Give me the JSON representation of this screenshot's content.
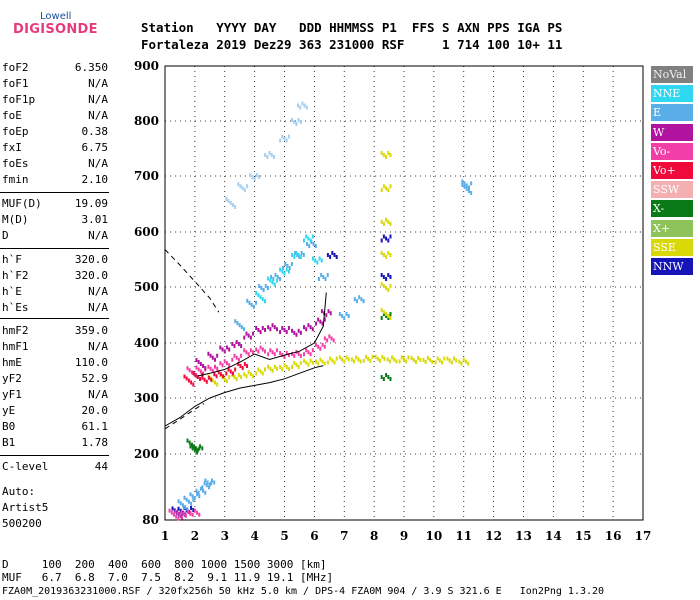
{
  "logo": {
    "small": "Lowell",
    "big": "DIGISONDE"
  },
  "header": {
    "line1": "Station   YYYY DAY   DDD HHMMSS P1  FFS S AXN PPS IGA PS",
    "line2": "Fortaleza 2019 Dez29 363 231000 RSF     1 714 100 10+ 11"
  },
  "params_group1": [
    {
      "label": "foF2",
      "value": "6.350"
    },
    {
      "label": "foF1",
      "value": "N/A"
    },
    {
      "label": "foF1p",
      "value": "N/A"
    },
    {
      "label": "foE",
      "value": "N/A"
    },
    {
      "label": "foEp",
      "value": "0.38"
    },
    {
      "label": "fxI",
      "value": "6.75"
    },
    {
      "label": "foEs",
      "value": "N/A"
    },
    {
      "label": "fmin",
      "value": "2.10"
    }
  ],
  "params_group2": [
    {
      "label": "MUF(D)",
      "value": "19.09"
    },
    {
      "label": "M(D)",
      "value": "3.01"
    },
    {
      "label": "D",
      "value": "N/A"
    }
  ],
  "params_group3": [
    {
      "label": "h`F",
      "value": "320.0"
    },
    {
      "label": "h`F2",
      "value": "320.0"
    },
    {
      "label": "h`E",
      "value": "N/A"
    },
    {
      "label": "h`Es",
      "value": "N/A"
    }
  ],
  "params_group4": [
    {
      "label": "hmF2",
      "value": "359.0"
    },
    {
      "label": "hmF1",
      "value": "N/A"
    },
    {
      "label": "hmE",
      "value": "110.0"
    },
    {
      "label": "yF2",
      "value": "52.9"
    },
    {
      "label": "yF1",
      "value": "N/A"
    },
    {
      "label": "yE",
      "value": "20.0"
    },
    {
      "label": "B0",
      "value": "61.1"
    },
    {
      "label": "B1",
      "value": "1.78"
    }
  ],
  "clevel": {
    "label": "C-level",
    "value": "44"
  },
  "auto": [
    "Auto:",
    "Artist5",
    "500200"
  ],
  "footer": {
    "d_row": "D     100  200  400  600  800 1000 1500 3000 [km]",
    "muf_row": "MUF   6.7  6.8  7.0  7.5  8.2  9.1 11.9 19.1 [MHz]",
    "file_row": "FZA0M_2019363231000.RSF / 320fx256h 50 kHz 5.0 km / DPS-4 FZA0M 904 / 3.9 S 321.6 E   Ion2Png 1.3.20"
  },
  "legend": [
    {
      "label": "NoVal",
      "color": "#808080"
    },
    {
      "label": "NNE",
      "color": "#2fd8f0"
    },
    {
      "label": "E",
      "color": "#5aaee8"
    },
    {
      "label": "W",
      "color": "#b0139e"
    },
    {
      "label": "Vo-",
      "color": "#f23fa8"
    },
    {
      "label": "Vo+",
      "color": "#f00a3c"
    },
    {
      "label": "SSW",
      "color": "#f4b0b0"
    },
    {
      "label": "X-",
      "color": "#0a7a18"
    },
    {
      "label": "X+",
      "color": "#8ec25a"
    },
    {
      "label": "SSE",
      "color": "#d9d90a"
    },
    {
      "label": "NNW",
      "color": "#1414b8"
    }
  ],
  "chart_data": {
    "type": "scatter",
    "x_ticks": [
      "1",
      "2",
      "3",
      "4",
      "5",
      "6",
      "7",
      "8",
      "9",
      "10",
      "11",
      "12",
      "13",
      "14",
      "15",
      "16",
      "17"
    ],
    "y_ticks": [
      "80",
      "200",
      "300",
      "400",
      "500",
      "600",
      "700",
      "800",
      "900"
    ],
    "xlim": [
      1,
      17
    ],
    "ylim": [
      80,
      900
    ],
    "grid": true,
    "traces": [
      {
        "color": "#d9d90a",
        "points": [
          [
            2.6,
            330
          ],
          [
            3.0,
            336
          ],
          [
            3.4,
            340
          ],
          [
            3.8,
            345
          ],
          [
            4.2,
            350
          ],
          [
            4.6,
            355
          ],
          [
            5.0,
            358
          ],
          [
            5.4,
            362
          ],
          [
            5.8,
            366
          ],
          [
            6.2,
            368
          ],
          [
            6.6,
            370
          ],
          [
            7.0,
            372
          ],
          [
            7.4,
            372
          ],
          [
            7.8,
            373
          ],
          [
            8.2,
            373
          ],
          [
            8.6,
            372
          ],
          [
            9.0,
            372
          ],
          [
            9.4,
            371
          ],
          [
            9.8,
            371
          ],
          [
            10.2,
            370
          ],
          [
            10.6,
            370
          ],
          [
            11.0,
            368
          ]
        ]
      },
      {
        "color": "#f23fa8",
        "points": [
          [
            1.9,
            345
          ],
          [
            2.2,
            350
          ],
          [
            2.6,
            355
          ],
          [
            3.0,
            365
          ],
          [
            3.4,
            375
          ],
          [
            3.8,
            385
          ],
          [
            4.2,
            390
          ],
          [
            4.6,
            385
          ],
          [
            5.0,
            380
          ],
          [
            5.4,
            382
          ],
          [
            5.8,
            385
          ],
          [
            6.2,
            395
          ],
          [
            6.5,
            410
          ]
        ]
      },
      {
        "color": "#b0139e",
        "points": [
          [
            2.2,
            360
          ],
          [
            2.6,
            375
          ],
          [
            3.0,
            390
          ],
          [
            3.4,
            400
          ],
          [
            3.8,
            415
          ],
          [
            4.2,
            425
          ],
          [
            4.6,
            430
          ],
          [
            5.0,
            425
          ],
          [
            5.4,
            420
          ],
          [
            5.8,
            430
          ],
          [
            6.2,
            440
          ],
          [
            6.4,
            455
          ]
        ]
      },
      {
        "color": "#5aaee8",
        "points": [
          [
            3.5,
            430
          ],
          [
            3.9,
            470
          ],
          [
            4.3,
            500
          ],
          [
            4.7,
            520
          ],
          [
            5.1,
            540
          ],
          [
            5.5,
            560
          ],
          [
            5.9,
            580
          ],
          [
            6.3,
            520
          ],
          [
            7.0,
            450
          ],
          [
            7.5,
            480
          ]
        ]
      },
      {
        "color": "#2fd8f0",
        "points": [
          [
            4.2,
            480
          ],
          [
            4.6,
            510
          ],
          [
            5.0,
            530
          ],
          [
            5.4,
            560
          ],
          [
            5.8,
            590
          ],
          [
            6.1,
            550
          ]
        ]
      },
      {
        "color": "#a9cfee",
        "points": [
          [
            3.2,
            650
          ],
          [
            3.6,
            680
          ],
          [
            4.0,
            700
          ],
          [
            4.5,
            740
          ],
          [
            5.0,
            770
          ],
          [
            5.4,
            800
          ],
          [
            5.6,
            830
          ]
        ]
      },
      {
        "color": "#f00a3c",
        "points": [
          [
            1.8,
            330
          ],
          [
            2.1,
            340
          ],
          [
            2.4,
            335
          ],
          [
            2.8,
            345
          ],
          [
            3.2,
            350
          ],
          [
            3.6,
            360
          ]
        ]
      },
      {
        "color": "#0a7a18",
        "points": [
          [
            1.9,
            215
          ],
          [
            2.0,
            208
          ],
          [
            2.1,
            212
          ],
          [
            8.4,
            340
          ],
          [
            8.4,
            450
          ]
        ]
      },
      {
        "color": "#1414b8",
        "points": [
          [
            1.4,
            92
          ],
          [
            1.6,
            95
          ],
          [
            1.8,
            100
          ],
          [
            6.6,
            560
          ],
          [
            8.4,
            590
          ],
          [
            8.4,
            520
          ]
        ]
      },
      {
        "color": "#5aaee8",
        "points": [
          [
            1.6,
            105
          ],
          [
            1.8,
            115
          ],
          [
            2.0,
            125
          ],
          [
            2.2,
            135
          ],
          [
            2.4,
            145
          ],
          [
            2.5,
            150
          ]
        ]
      },
      {
        "color": "#f23fa8",
        "points": [
          [
            1.3,
            88
          ],
          [
            1.5,
            90
          ],
          [
            1.7,
            93
          ],
          [
            2.0,
            95
          ]
        ]
      },
      {
        "color": "#d9d90a",
        "points": [
          [
            8.4,
            450
          ],
          [
            8.4,
            500
          ],
          [
            8.4,
            560
          ],
          [
            8.4,
            620
          ],
          [
            8.4,
            680
          ],
          [
            8.4,
            740
          ]
        ]
      },
      {
        "color": "#5aaee8",
        "points": [
          [
            11.1,
            675
          ],
          [
            11.1,
            685
          ]
        ]
      }
    ],
    "profile_curve": [
      [
        1,
        250
      ],
      [
        1.5,
        265
      ],
      [
        2,
        285
      ],
      [
        2.5,
        300
      ],
      [
        3,
        310
      ],
      [
        3.5,
        318
      ],
      [
        4,
        323
      ],
      [
        4.5,
        328
      ],
      [
        5,
        335
      ],
      [
        5.5,
        345
      ],
      [
        6,
        355
      ],
      [
        6.3,
        359
      ]
    ],
    "extrap_upper": [
      [
        1,
        568
      ],
      [
        1.5,
        540
      ],
      [
        2,
        510
      ],
      [
        2.5,
        480
      ],
      [
        2.8,
        455
      ]
    ],
    "extrap_lower": [
      [
        1,
        245
      ],
      [
        1.5,
        262
      ],
      [
        2,
        280
      ],
      [
        2.3,
        290
      ]
    ],
    "trace_curve": [
      [
        2.1,
        340
      ],
      [
        2.5,
        345
      ],
      [
        3,
        352
      ],
      [
        3.5,
        365
      ],
      [
        4,
        380
      ],
      [
        4.5,
        370
      ],
      [
        5,
        378
      ],
      [
        5.5,
        385
      ],
      [
        6,
        400
      ],
      [
        6.3,
        430
      ],
      [
        6.4,
        490
      ]
    ]
  }
}
